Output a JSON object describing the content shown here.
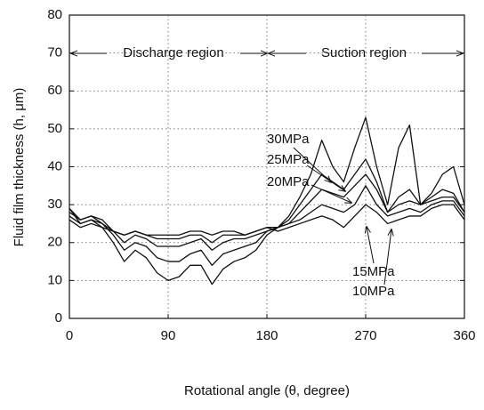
{
  "chart_data": {
    "type": "line",
    "xlabel": "Rotational angle (θ, degree)",
    "ylabel": "Fluid film thickness (h, μm)",
    "x": [
      0,
      10,
      20,
      30,
      40,
      50,
      60,
      70,
      80,
      90,
      100,
      110,
      120,
      130,
      140,
      150,
      160,
      170,
      180,
      190,
      200,
      210,
      220,
      230,
      240,
      250,
      260,
      270,
      280,
      290,
      300,
      310,
      320,
      330,
      340,
      350,
      360
    ],
    "series": [
      {
        "name": "30MPa",
        "color": "#111111",
        "values": [
          29,
          25,
          26,
          24,
          20,
          15,
          18,
          16,
          12,
          10,
          11,
          14,
          14,
          9,
          13,
          15,
          16,
          18,
          22,
          24,
          27,
          32,
          38,
          47,
          40,
          36,
          45,
          53,
          40,
          30,
          45,
          51,
          30,
          33,
          38,
          40,
          30
        ]
      },
      {
        "name": "25MPa",
        "color": "#111111",
        "values": [
          29,
          26,
          27,
          25,
          22,
          18,
          20,
          19,
          16,
          15,
          15,
          17,
          18,
          14,
          17,
          18,
          19,
          20,
          23,
          24,
          26,
          30,
          34,
          38,
          36,
          34,
          38,
          42,
          36,
          28,
          32,
          34,
          30,
          32,
          34,
          33,
          28
        ]
      },
      {
        "name": "20MPa",
        "color": "#111111",
        "values": [
          28,
          26,
          27,
          26,
          23,
          20,
          22,
          21,
          19,
          19,
          19,
          20,
          21,
          18,
          20,
          21,
          21,
          22,
          23,
          24,
          25,
          28,
          31,
          34,
          33,
          32,
          35,
          38,
          34,
          28,
          30,
          31,
          30,
          31,
          32,
          32,
          28
        ]
      },
      {
        "name": "15MPa",
        "color": "#111111",
        "values": [
          27,
          25,
          26,
          25,
          23,
          22,
          23,
          22,
          21,
          21,
          21,
          22,
          22,
          20,
          22,
          22,
          22,
          23,
          24,
          24,
          25,
          26,
          28,
          30,
          29,
          28,
          30,
          35,
          30,
          27,
          28,
          29,
          28,
          30,
          31,
          31,
          27
        ]
      },
      {
        "name": "10MPa",
        "color": "#111111",
        "values": [
          26,
          24,
          25,
          24,
          23,
          22,
          23,
          22,
          22,
          22,
          22,
          23,
          23,
          22,
          23,
          23,
          22,
          23,
          24,
          23,
          24,
          25,
          26,
          27,
          26,
          24,
          27,
          30,
          28,
          25,
          26,
          27,
          27,
          29,
          30,
          30,
          26
        ]
      }
    ],
    "annotations": [
      "Discharge region",
      "Suction region"
    ],
    "xlim": [
      0,
      360
    ],
    "xticks": [
      0,
      90,
      180,
      270,
      360
    ],
    "ylim": [
      0,
      80
    ],
    "yticks": [
      0,
      10,
      20,
      30,
      40,
      50,
      60,
      70,
      80
    ],
    "grid": true
  }
}
